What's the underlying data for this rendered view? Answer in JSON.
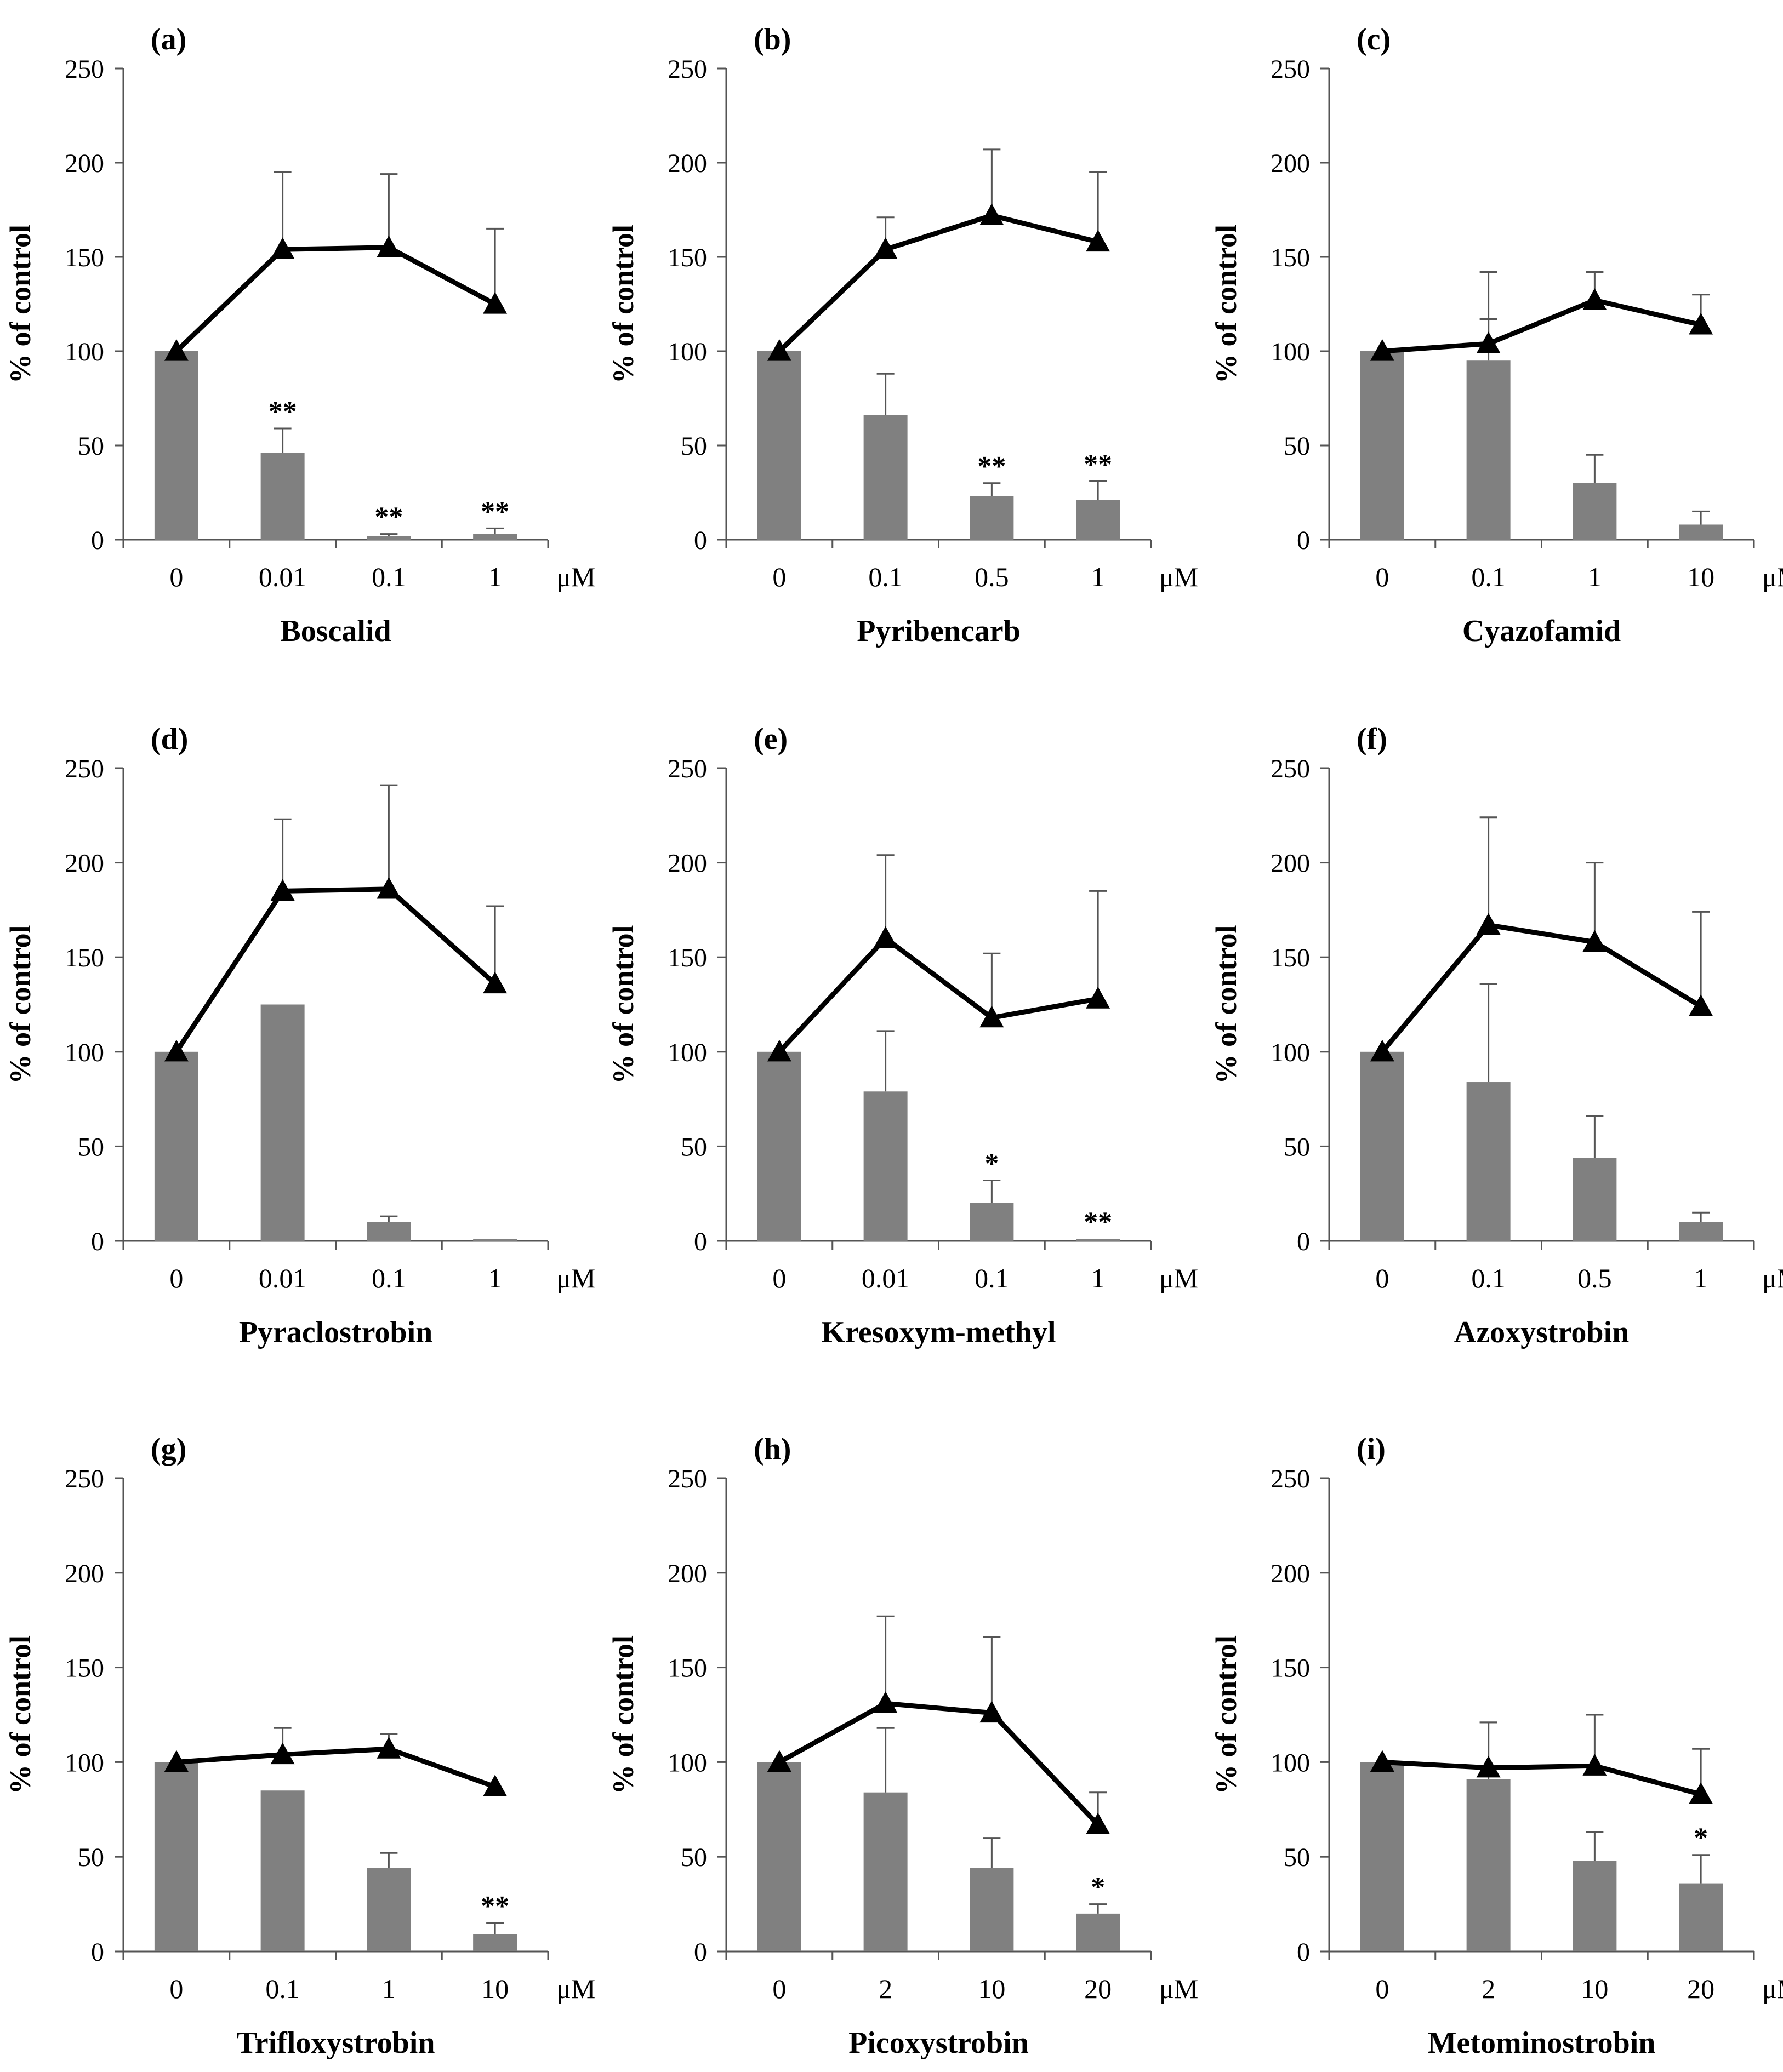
{
  "figure": {
    "ylabel": "% of control",
    "unit": "μM",
    "yticks": [
      0,
      50,
      100,
      150,
      200,
      250
    ],
    "colors": {
      "bar": "#808080",
      "line": "#000000",
      "axis": "#555555",
      "text": "#000000"
    }
  },
  "chart_data": [
    {
      "panel": "(a)",
      "type": "bar+line",
      "title": "Boscalid",
      "ylabel": "% of control",
      "unit": "μM",
      "ylim": [
        0,
        250
      ],
      "categories": [
        "0",
        "0.01",
        "0.1",
        "1"
      ],
      "series": [
        {
          "kind": "bar",
          "values": [
            100,
            46,
            2,
            3
          ],
          "errors": [
            0,
            13,
            1,
            3
          ],
          "annotations": [
            "",
            "**",
            "**",
            "**"
          ]
        },
        {
          "kind": "line",
          "marker": "triangle",
          "values": [
            100,
            154,
            155,
            125
          ],
          "errors": [
            0,
            41,
            39,
            40
          ]
        }
      ]
    },
    {
      "panel": "(b)",
      "type": "bar+line",
      "title": "Pyribencarb",
      "ylabel": "% of control",
      "unit": "μM",
      "ylim": [
        0,
        250
      ],
      "categories": [
        "0",
        "0.1",
        "0.5",
        "1"
      ],
      "series": [
        {
          "kind": "bar",
          "values": [
            100,
            66,
            23,
            21
          ],
          "errors": [
            0,
            22,
            7,
            10
          ],
          "annotations": [
            "",
            "",
            "**",
            "**"
          ]
        },
        {
          "kind": "line",
          "marker": "triangle",
          "values": [
            100,
            154,
            172,
            158
          ],
          "errors": [
            0,
            17,
            35,
            37
          ]
        }
      ]
    },
    {
      "panel": "(c)",
      "type": "bar+line",
      "title": "Cyazofamid",
      "ylabel": "% of control",
      "unit": "μM",
      "ylim": [
        0,
        250
      ],
      "categories": [
        "0",
        "0.1",
        "1",
        "10"
      ],
      "series": [
        {
          "kind": "bar",
          "values": [
            100,
            95,
            30,
            8
          ],
          "errors": [
            0,
            22,
            15,
            7
          ],
          "annotations": [
            "",
            "",
            "",
            ""
          ]
        },
        {
          "kind": "line",
          "marker": "triangle",
          "values": [
            100,
            104,
            127,
            114
          ],
          "errors": [
            0,
            38,
            15,
            16
          ]
        }
      ]
    },
    {
      "panel": "(d)",
      "type": "bar+line",
      "title": "Pyraclostrobin",
      "ylabel": "% of control",
      "unit": "μM",
      "ylim": [
        0,
        250
      ],
      "categories": [
        "0",
        "0.01",
        "0.1",
        "1"
      ],
      "series": [
        {
          "kind": "bar",
          "values": [
            100,
            125,
            10,
            1
          ],
          "errors": [
            0,
            0,
            3,
            0
          ],
          "annotations": [
            "",
            "",
            "",
            ""
          ]
        },
        {
          "kind": "line",
          "marker": "triangle",
          "values": [
            100,
            185,
            186,
            136
          ],
          "errors": [
            0,
            38,
            55,
            41
          ]
        }
      ]
    },
    {
      "panel": "(e)",
      "type": "bar+line",
      "title": "Kresoxym-methyl",
      "ylabel": "% of control",
      "unit": "μM",
      "ylim": [
        0,
        250
      ],
      "categories": [
        "0",
        "0.01",
        "0.1",
        "1"
      ],
      "series": [
        {
          "kind": "bar",
          "values": [
            100,
            79,
            20,
            1
          ],
          "errors": [
            0,
            32,
            12,
            0
          ],
          "annotations": [
            "",
            "",
            "*",
            "**"
          ]
        },
        {
          "kind": "line",
          "marker": "triangle",
          "values": [
            100,
            160,
            118,
            128
          ],
          "errors": [
            0,
            44,
            34,
            57
          ]
        }
      ]
    },
    {
      "panel": "(f)",
      "type": "bar+line",
      "title": "Azoxystrobin",
      "ylabel": "% of control",
      "unit": "μM",
      "ylim": [
        0,
        250
      ],
      "categories": [
        "0",
        "0.1",
        "0.5",
        "1"
      ],
      "series": [
        {
          "kind": "bar",
          "values": [
            100,
            84,
            44,
            10
          ],
          "errors": [
            0,
            52,
            22,
            5
          ],
          "annotations": [
            "",
            "",
            "",
            ""
          ]
        },
        {
          "kind": "line",
          "marker": "triangle",
          "values": [
            100,
            167,
            158,
            124
          ],
          "errors": [
            0,
            57,
            42,
            50
          ]
        }
      ]
    },
    {
      "panel": "(g)",
      "type": "bar+line",
      "title": "Trifloxystrobin",
      "ylabel": "% of control",
      "unit": "μM",
      "ylim": [
        0,
        250
      ],
      "categories": [
        "0",
        "0.1",
        "1",
        "10"
      ],
      "series": [
        {
          "kind": "bar",
          "values": [
            100,
            85,
            44,
            9
          ],
          "errors": [
            0,
            0,
            8,
            6
          ],
          "annotations": [
            "",
            "",
            "",
            "**"
          ]
        },
        {
          "kind": "line",
          "marker": "triangle",
          "values": [
            100,
            104,
            107,
            87
          ],
          "errors": [
            0,
            14,
            8,
            0
          ]
        }
      ]
    },
    {
      "panel": "(h)",
      "type": "bar+line",
      "title": "Picoxystrobin",
      "ylabel": "% of control",
      "unit": "μM",
      "ylim": [
        0,
        250
      ],
      "categories": [
        "0",
        "2",
        "10",
        "20"
      ],
      "series": [
        {
          "kind": "bar",
          "values": [
            100,
            84,
            44,
            20
          ],
          "errors": [
            0,
            34,
            16,
            5
          ],
          "annotations": [
            "",
            "",
            "",
            "*"
          ]
        },
        {
          "kind": "line",
          "marker": "triangle",
          "values": [
            100,
            131,
            126,
            67
          ],
          "errors": [
            0,
            46,
            40,
            17
          ]
        }
      ]
    },
    {
      "panel": "(i)",
      "type": "bar+line",
      "title": "Metominostrobin",
      "ylabel": "% of control",
      "unit": "μM",
      "ylim": [
        0,
        250
      ],
      "categories": [
        "0",
        "2",
        "10",
        "20"
      ],
      "series": [
        {
          "kind": "bar",
          "values": [
            100,
            91,
            48,
            36
          ],
          "errors": [
            0,
            30,
            15,
            15
          ],
          "annotations": [
            "",
            "",
            "",
            "*"
          ]
        },
        {
          "kind": "line",
          "marker": "triangle",
          "values": [
            100,
            97,
            98,
            83
          ],
          "errors": [
            0,
            24,
            27,
            24
          ]
        }
      ]
    }
  ]
}
